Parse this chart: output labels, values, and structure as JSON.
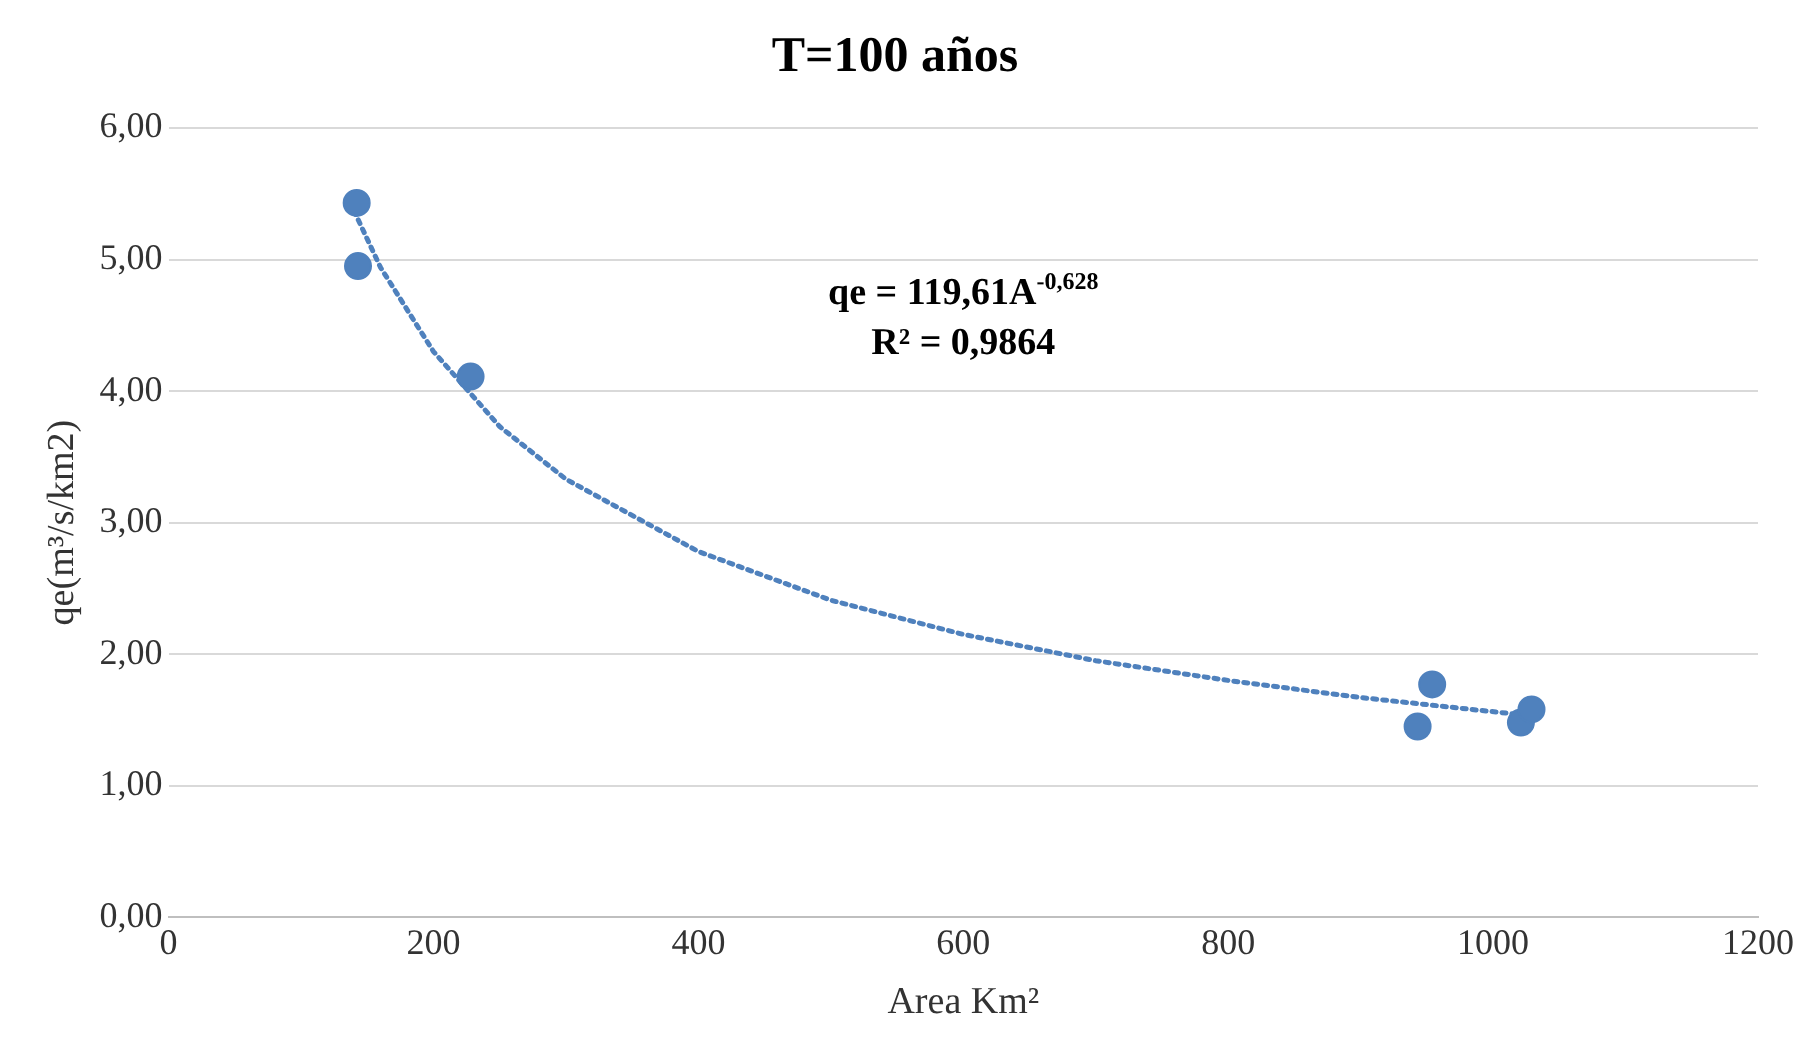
{
  "chart_data": {
    "type": "scatter",
    "title": "T=100 años",
    "xlabel": "Area Km²",
    "ylabel": "qe(m³/s/km2)",
    "xlim": [
      0,
      1200
    ],
    "xticks": [
      0,
      200,
      400,
      600,
      800,
      1000,
      1200
    ],
    "ylim": [
      0,
      6
    ],
    "yticks": [
      {
        "value": 0,
        "label": "0,00"
      },
      {
        "value": 1,
        "label": "1,00"
      },
      {
        "value": 2,
        "label": "2,00"
      },
      {
        "value": 3,
        "label": "3,00"
      },
      {
        "value": 4,
        "label": "4,00"
      },
      {
        "value": 5,
        "label": "5,00"
      },
      {
        "value": 6,
        "label": "6,00"
      }
    ],
    "grid": "y",
    "legend": false,
    "marker": "circle",
    "series": [
      {
        "type": "scatter",
        "color": "#4f81bd",
        "x": [
          142,
          143,
          228,
          943,
          954,
          1021,
          1029
        ],
        "values": [
          5.43,
          4.95,
          4.11,
          1.45,
          1.77,
          1.48,
          1.58
        ]
      },
      {
        "type": "line",
        "color": "#4f81bd",
        "line_style": "dotted",
        "marker": "none",
        "x": [
          140,
          160,
          200,
          250,
          300,
          400,
          500,
          600,
          700,
          800,
          900,
          1030
        ],
        "values": [
          5.37,
          4.94,
          4.3,
          3.73,
          3.33,
          2.78,
          2.41,
          2.15,
          1.95,
          1.8,
          1.67,
          1.53
        ]
      }
    ],
    "annotations": [
      "qe = 119,61A$^{-0,628}$",
      "R² = 0,9864"
    ]
  }
}
